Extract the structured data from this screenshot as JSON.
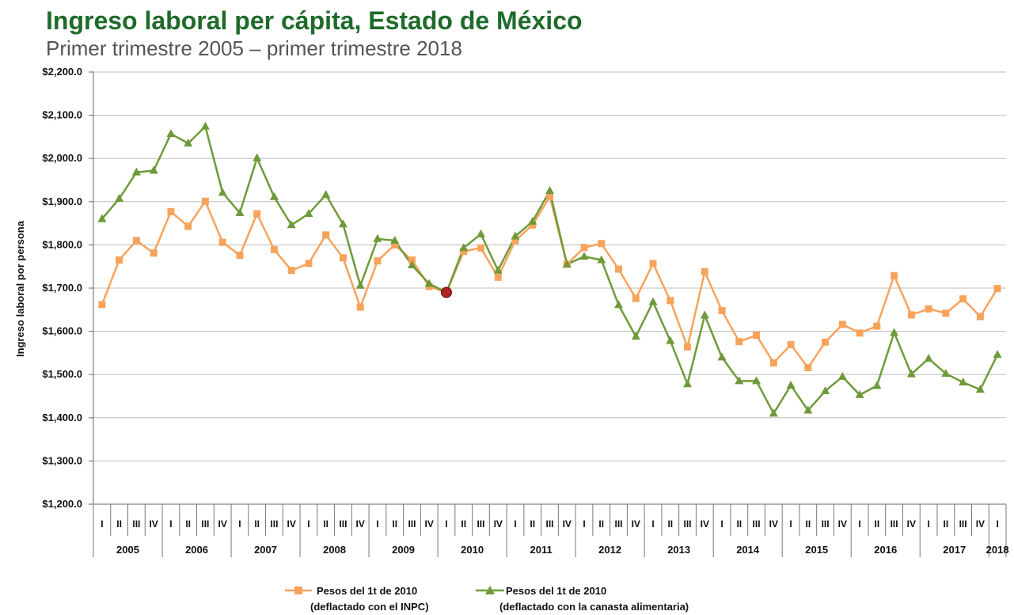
{
  "title": "Ingreso laboral per cápita, Estado de México",
  "subtitle": "Primer trimestre 2005 – primer trimestre 2018",
  "colors": {
    "title": "#1e6b2a",
    "inpc": "#f7a35c",
    "canasta": "#6f9a3a",
    "highlight": "#b22222"
  },
  "chart_data": {
    "type": "line",
    "title": "Ingreso laboral per cápita, Estado de México",
    "subtitle": "Primer trimestre 2005 – primer trimestre 2018",
    "ylabel": "Ingreso laboral por persona",
    "xlabel": "",
    "ylim": [
      1200,
      2200
    ],
    "yticks": [
      "$1,200.0",
      "$1,300.0",
      "$1,400.0",
      "$1,500.0",
      "$1,600.0",
      "$1,700.0",
      "$1,800.0",
      "$1,900.0",
      "$2,000.0",
      "$2,100.0",
      "$2,200.0"
    ],
    "grid": true,
    "legend_position": "bottom",
    "quarter_labels": [
      "I",
      "II",
      "III",
      "IV"
    ],
    "years": [
      "2005",
      "2006",
      "2007",
      "2008",
      "2009",
      "2010",
      "2011",
      "2012",
      "2013",
      "2014",
      "2015",
      "2016",
      "2017",
      "2018"
    ],
    "x": [
      "2005 I",
      "2005 II",
      "2005 III",
      "2005 IV",
      "2006 I",
      "2006 II",
      "2006 III",
      "2006 IV",
      "2007 I",
      "2007 II",
      "2007 III",
      "2007 IV",
      "2008 I",
      "2008 II",
      "2008 III",
      "2008 IV",
      "2009 I",
      "2009 II",
      "2009 III",
      "2009 IV",
      "2010 I",
      "2010 II",
      "2010 III",
      "2010 IV",
      "2011 I",
      "2011 II",
      "2011 III",
      "2011 IV",
      "2012 I",
      "2012 II",
      "2012 III",
      "2012 IV",
      "2013 I",
      "2013 II",
      "2013 III",
      "2013 IV",
      "2014 I",
      "2014 II",
      "2014 III",
      "2014 IV",
      "2015 I",
      "2015 II",
      "2015 III",
      "2015 IV",
      "2016 I",
      "2016 II",
      "2016 III",
      "2016 IV",
      "2017 I",
      "2017 II",
      "2017 III",
      "2017 IV",
      "2018 I"
    ],
    "series": [
      {
        "name": "Pesos del 1t de 2010",
        "name_line2": "(deflactado con el INPC)",
        "marker": "square",
        "values": [
          1662,
          1765,
          1810,
          1781,
          1877,
          1843,
          1901,
          1806,
          1776,
          1872,
          1789,
          1741,
          1757,
          1823,
          1770,
          1656,
          1763,
          1800,
          1765,
          1704,
          1690,
          1785,
          1793,
          1725,
          1810,
          1846,
          1912,
          1755,
          1794,
          1803,
          1744,
          1676,
          1757,
          1671,
          1564,
          1738,
          1648,
          1576,
          1591,
          1527,
          1569,
          1516,
          1575,
          1616,
          1596,
          1612,
          1729,
          1638,
          1652,
          1642,
          1675,
          1634,
          1699
        ]
      },
      {
        "name": "Pesos del 1t de 2010",
        "name_line2": "(deflactado con la canasta alimentaria)",
        "marker": "triangle",
        "values": [
          1860,
          1907,
          1968,
          1972,
          2057,
          2035,
          2074,
          1921,
          1874,
          2001,
          1911,
          1846,
          1872,
          1916,
          1848,
          1706,
          1814,
          1810,
          1753,
          1710,
          1690,
          1793,
          1825,
          1741,
          1820,
          1854,
          1925,
          1755,
          1773,
          1765,
          1661,
          1588,
          1668,
          1578,
          1478,
          1637,
          1540,
          1485,
          1485,
          1410,
          1475,
          1417,
          1462,
          1495,
          1453,
          1474,
          1597,
          1501,
          1537,
          1502,
          1482,
          1465,
          1546
        ]
      }
    ],
    "highlight_point": {
      "x": "2010 I",
      "value": 1690
    }
  }
}
